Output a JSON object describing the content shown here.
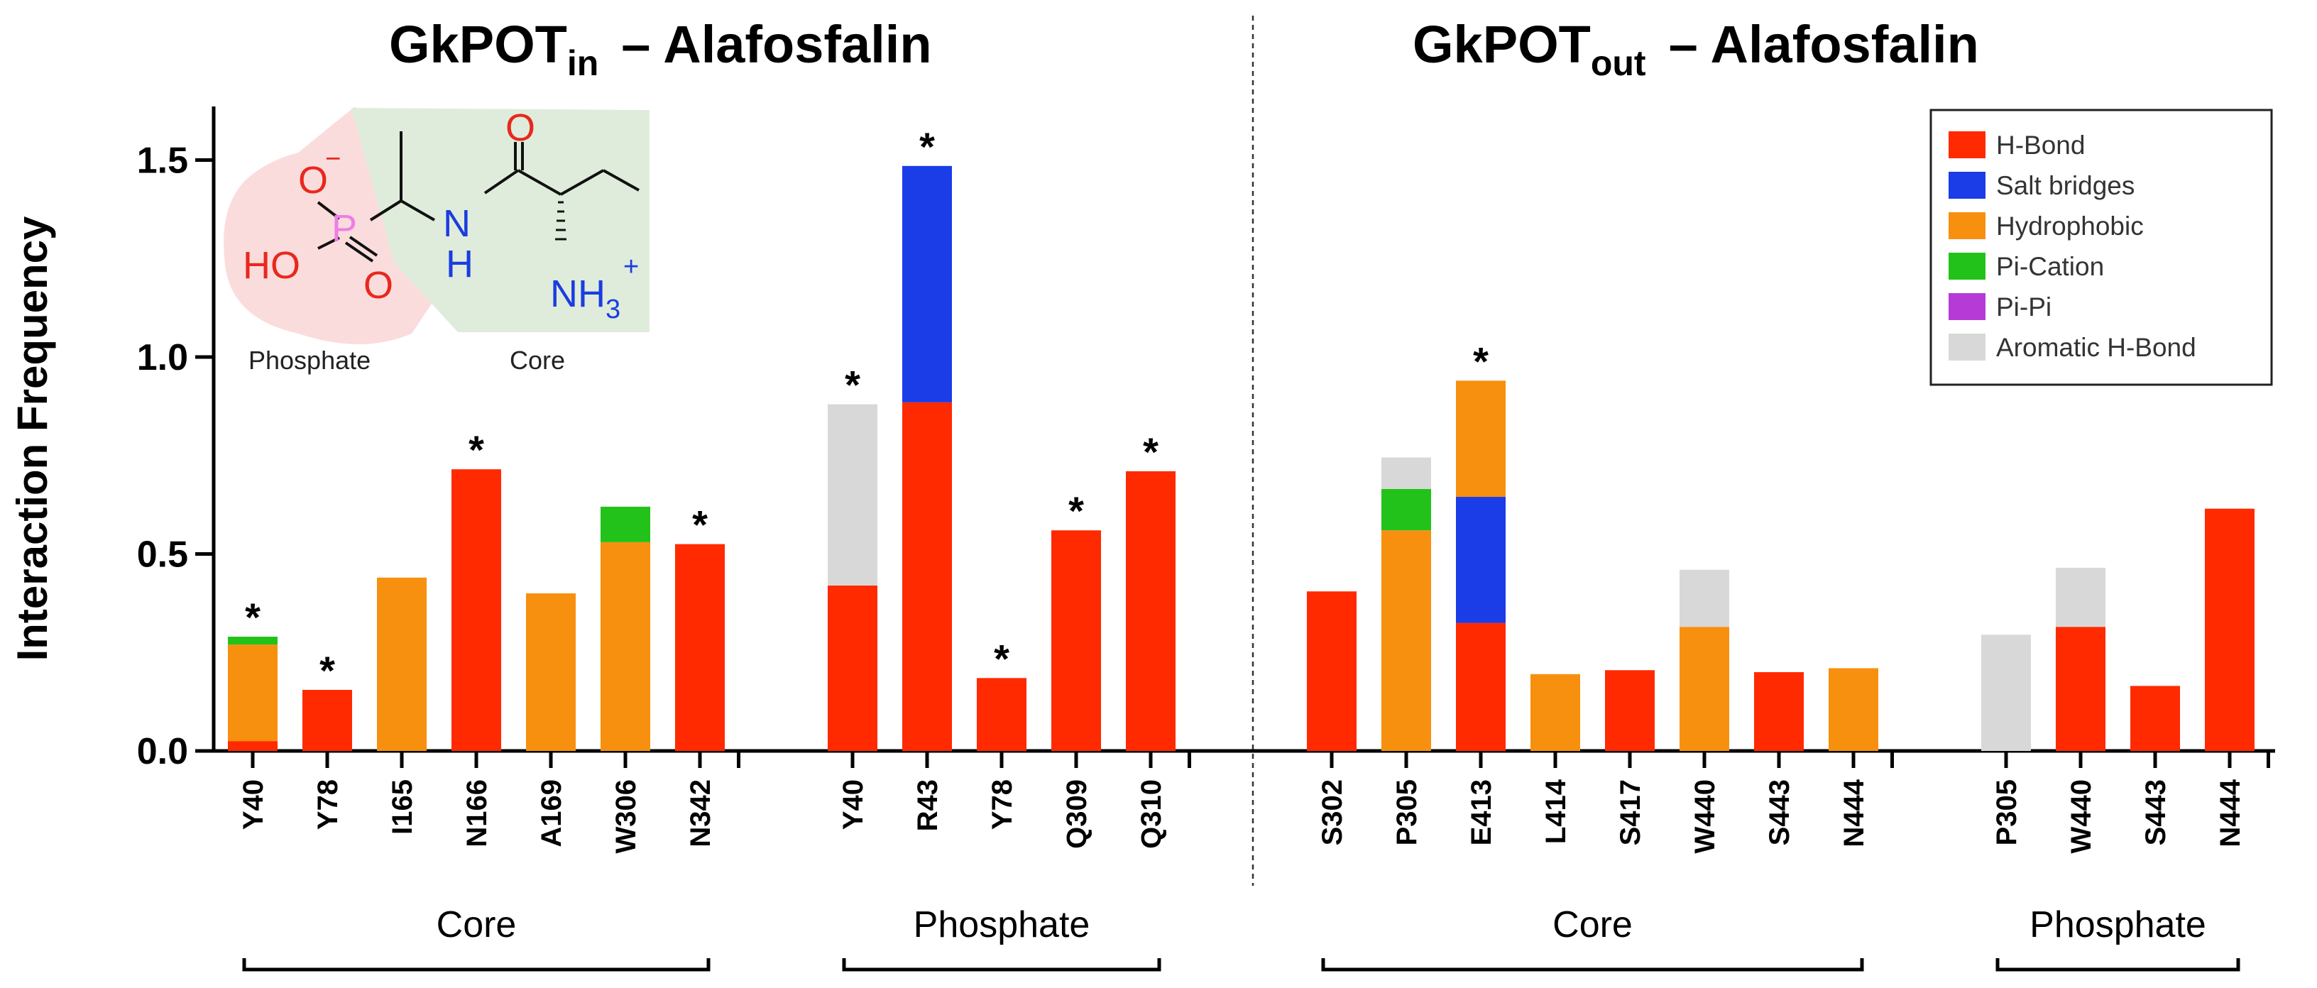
{
  "chart_data": {
    "type": "bar",
    "stacked": true,
    "ylabel": "Interaction Frequency",
    "ylim": [
      0,
      1.6
    ],
    "yticks": [
      "0.0",
      "0.5",
      "1.0",
      "1.5"
    ],
    "legend_position": "top-right",
    "interaction_types": [
      {
        "key": "hbond",
        "name": "H-Bond",
        "color": "#ff2a00"
      },
      {
        "key": "salt",
        "name": "Salt bridges",
        "color": "#1a3de8"
      },
      {
        "key": "hydro",
        "name": "Hydrophobic",
        "color": "#f7900f"
      },
      {
        "key": "picat",
        "name": "Pi-Cation",
        "color": "#22c21a"
      },
      {
        "key": "pipi",
        "name": "Pi-Pi",
        "color": "#b53ad6"
      },
      {
        "key": "arom",
        "name": "Aromatic H-Bond",
        "color": "#d8d8d8"
      }
    ],
    "panels": [
      {
        "title": "GkPOT",
        "title_sub": "in",
        "title_suffix": "– Alafosfalin",
        "groups": [
          {
            "label": "Core",
            "residues": [
              {
                "name": "Y40",
                "star": true,
                "segments": {
                  "hbond": 0.025,
                  "picat": 0.02,
                  "hydro": 0.245
                }
              },
              {
                "name": "Y78",
                "star": true,
                "segments": {
                  "hbond": 0.155
                }
              },
              {
                "name": "I165",
                "star": false,
                "segments": {
                  "hydro": 0.44
                }
              },
              {
                "name": "N166",
                "star": true,
                "segments": {
                  "hbond": 0.715
                }
              },
              {
                "name": "A169",
                "star": false,
                "segments": {
                  "hydro": 0.4
                }
              },
              {
                "name": "W306",
                "star": false,
                "segments": {
                  "picat": 0.09,
                  "hydro": 0.53
                }
              },
              {
                "name": "N342",
                "star": true,
                "segments": {
                  "hbond": 0.525
                }
              }
            ]
          },
          {
            "label": "Phosphate",
            "residues": [
              {
                "name": "Y40",
                "star": true,
                "segments": {
                  "hbond": 0.42,
                  "arom": 0.46
                }
              },
              {
                "name": "R43",
                "star": true,
                "segments": {
                  "hbond": 0.885,
                  "salt": 0.6
                }
              },
              {
                "name": "Y78",
                "star": true,
                "segments": {
                  "hbond": 0.185
                }
              },
              {
                "name": "Q309",
                "star": true,
                "segments": {
                  "hbond": 0.56
                }
              },
              {
                "name": "Q310",
                "star": true,
                "segments": {
                  "hbond": 0.71
                }
              }
            ]
          }
        ]
      },
      {
        "title": "GkPOT",
        "title_sub": "out",
        "title_suffix": "– Alafosfalin",
        "groups": [
          {
            "label": "Core",
            "residues": [
              {
                "name": "S302",
                "star": false,
                "segments": {
                  "hbond": 0.405
                }
              },
              {
                "name": "P305",
                "star": false,
                "segments": {
                  "picat": 0.105,
                  "hydro": 0.56,
                  "arom": 0.08
                }
              },
              {
                "name": "E413",
                "star": true,
                "segments": {
                  "hbond": 0.325,
                  "salt": 0.32,
                  "hydro": 0.295
                }
              },
              {
                "name": "L414",
                "star": false,
                "segments": {
                  "hydro": 0.195
                }
              },
              {
                "name": "S417",
                "star": false,
                "segments": {
                  "hbond": 0.205
                }
              },
              {
                "name": "W440",
                "star": false,
                "segments": {
                  "hydro": 0.315,
                  "arom": 0.145
                }
              },
              {
                "name": "S443",
                "star": false,
                "segments": {
                  "hbond": 0.2
                }
              },
              {
                "name": "N444",
                "star": false,
                "segments": {
                  "hydro": 0.21
                }
              }
            ]
          },
          {
            "label": "Phosphate",
            "residues": [
              {
                "name": "P305",
                "star": false,
                "segments": {
                  "arom": 0.295
                }
              },
              {
                "name": "W440",
                "star": false,
                "segments": {
                  "hbond": 0.315,
                  "arom": 0.15
                }
              },
              {
                "name": "S443",
                "star": false,
                "segments": {
                  "hbond": 0.165
                }
              },
              {
                "name": "N444",
                "star": false,
                "segments": {
                  "hbond": 0.615
                }
              }
            ]
          }
        ]
      }
    ]
  },
  "structure_inset": {
    "atoms": {
      "o_minus": "O",
      "minus": "−",
      "p": "P",
      "ho": "HO",
      "o_dbl": "O",
      "n": "N",
      "h": "H",
      "o_carbonyl": "O",
      "nh": "NH",
      "three": "3",
      "plus": "+"
    },
    "region_labels": {
      "phosphate": "Phosphate",
      "core": "Core"
    }
  }
}
